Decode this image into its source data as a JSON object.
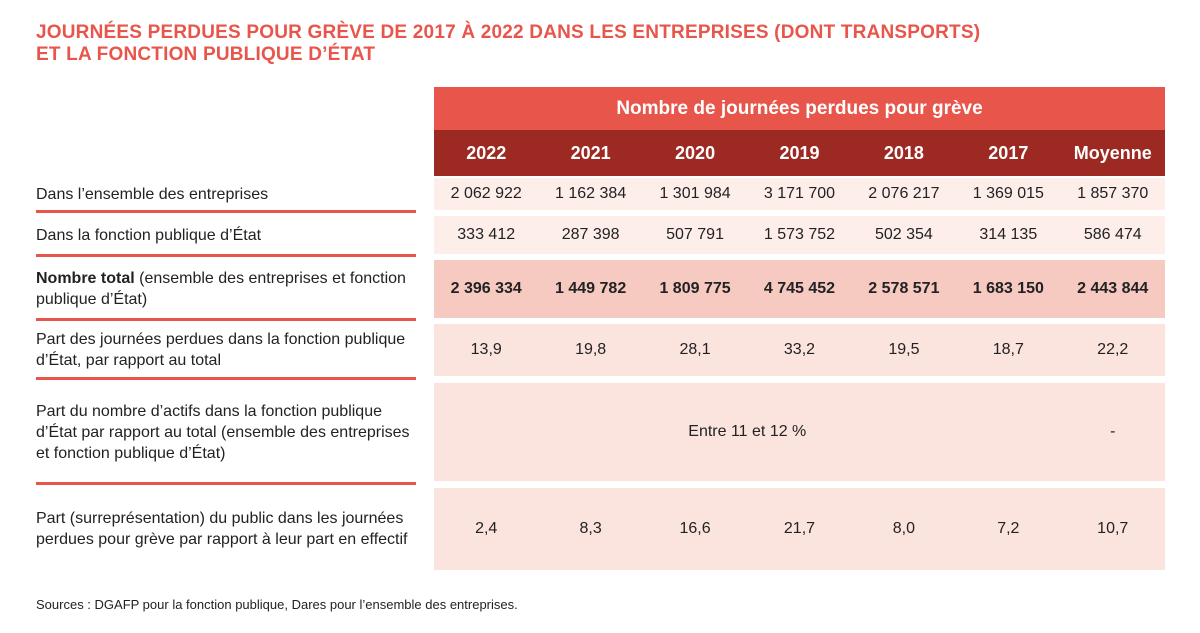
{
  "title": {
    "line1": "JOURNÉES PERDUES POUR GRÈVE DE 2017 À 2022 DANS LES ENTREPRISES (DONT TRANSPORTS)",
    "line2": "ET LA FONCTION PUBLIQUE D’ÉTAT"
  },
  "table": {
    "header": "Nombre de journées perdues pour grève",
    "columns": [
      "2022",
      "2021",
      "2020",
      "2019",
      "2018",
      "2017",
      "Moyenne"
    ],
    "rows": [
      {
        "label": "Dans l’ensemble des entreprises",
        "values": [
          "2 062 922",
          "1 162 384",
          "1 301 984",
          "3 171 700",
          "2 076 217",
          "1 369 015",
          "1 857 370"
        ]
      },
      {
        "label": "Dans la fonction publique d’État",
        "values": [
          "333 412",
          "287 398",
          "507 791",
          "1 573 752",
          "502 354",
          "314 135",
          "586 474"
        ]
      },
      {
        "label_bold": "Nombre total",
        "label_rest": " (ensemble des entreprises et fonction publique d’État)",
        "values": [
          "2 396 334",
          "1 449 782",
          "1 809 775",
          "4 745 452",
          "2 578 571",
          "1 683 150",
          "2 443 844"
        ]
      },
      {
        "label": "Part des journées perdues dans la fonction publique d’État, par rapport au total",
        "values": [
          "13,9",
          "19,8",
          "28,1",
          "33,2",
          "19,5",
          "18,7",
          "22,2"
        ]
      },
      {
        "label": "Part du nombre d’actifs dans la fonction publique d’État par rapport au total (ensemble des entreprises et fonction publique d’État)",
        "merged_value": "Entre 11 et 12 %",
        "average": "-"
      },
      {
        "label": "Part (surreprésentation) du public dans les journées perdues pour grève par rapport à leur part en effectif",
        "values": [
          "2,4",
          "8,3",
          "16,6",
          "21,7",
          "8,0",
          "7,2",
          "10,7"
        ]
      }
    ]
  },
  "sources": "Sources : DGAFP pour la fonction publique, Dares pour l’ensemble des entreprises.",
  "colors": {
    "accent": "#e8554a",
    "dark_header": "#9c2a23",
    "cell_bg": "#fbe3de",
    "total_bg": "#f6c9c1"
  }
}
